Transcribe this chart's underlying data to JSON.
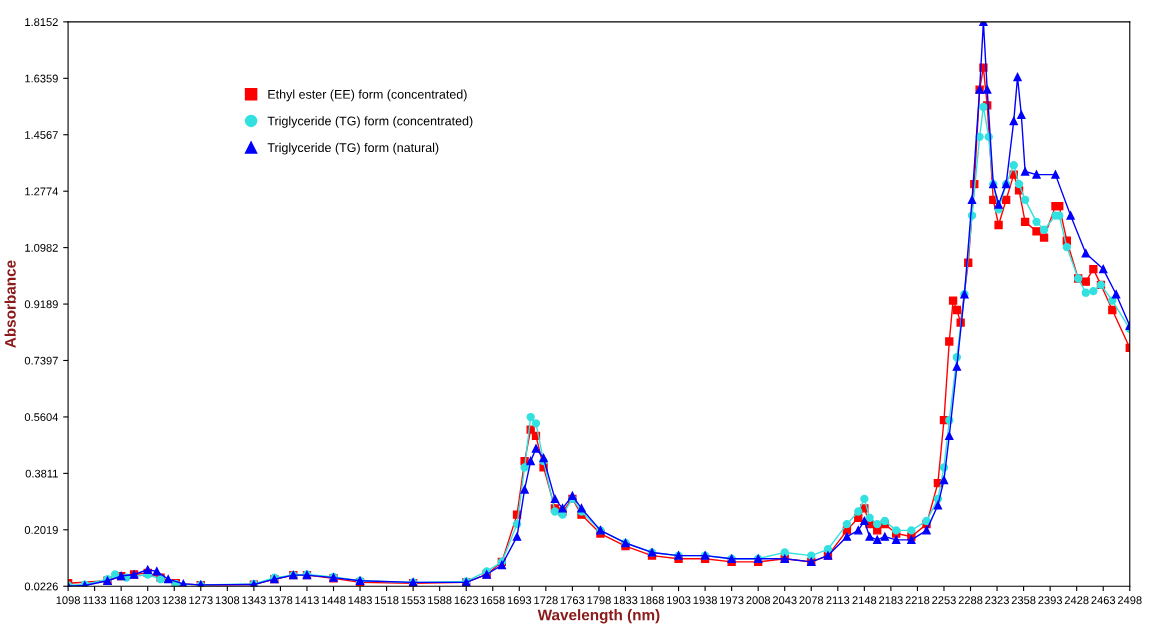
{
  "chart_data": {
    "type": "line",
    "xlabel": "Wavelength (nm)",
    "ylabel": "Absorbance",
    "xlim": [
      1098,
      2498
    ],
    "ylim": [
      0.0226,
      1.8152
    ],
    "xticks": [
      1098,
      1133,
      1168,
      1203,
      1238,
      1273,
      1308,
      1343,
      1378,
      1413,
      1448,
      1483,
      1518,
      1553,
      1588,
      1623,
      1658,
      1693,
      1728,
      1763,
      1798,
      1833,
      1868,
      1903,
      1938,
      1973,
      2008,
      2043,
      2078,
      2113,
      2148,
      2183,
      2218,
      2253,
      2288,
      2323,
      2358,
      2393,
      2428,
      2463,
      2498
    ],
    "yticks": [
      0.0226,
      0.2019,
      0.3811,
      0.5604,
      0.7397,
      0.9189,
      1.0982,
      1.2774,
      1.4567,
      1.6359,
      1.8152
    ],
    "grid": false,
    "legend": "top left",
    "line_style": "solid",
    "series": [
      {
        "name": "Ethyl ester (EE) form (concentrated)",
        "color": "#ff0000",
        "marker": "square",
        "x": [
          1098,
          1150,
          1168,
          1185,
          1203,
          1220,
          1240,
          1273,
          1343,
          1370,
          1395,
          1413,
          1448,
          1483,
          1553,
          1623,
          1650,
          1670,
          1690,
          1700,
          1708,
          1715,
          1725,
          1740,
          1750,
          1763,
          1775,
          1800,
          1833,
          1868,
          1903,
          1938,
          1973,
          2008,
          2043,
          2078,
          2100,
          2125,
          2140,
          2148,
          2155,
          2165,
          2175,
          2190,
          2210,
          2230,
          2245,
          2253,
          2260,
          2265,
          2270,
          2275,
          2285,
          2293,
          2300,
          2305,
          2310,
          2318,
          2325,
          2335,
          2345,
          2352,
          2360,
          2375,
          2385,
          2400,
          2405,
          2415,
          2430,
          2440,
          2450,
          2460,
          2475,
          2498
        ],
        "values": [
          0.032,
          0.04,
          0.055,
          0.06,
          0.065,
          0.05,
          0.032,
          0.026,
          0.028,
          0.045,
          0.058,
          0.058,
          0.048,
          0.035,
          0.032,
          0.035,
          0.06,
          0.1,
          0.25,
          0.42,
          0.52,
          0.5,
          0.4,
          0.27,
          0.26,
          0.3,
          0.25,
          0.19,
          0.15,
          0.12,
          0.11,
          0.11,
          0.1,
          0.1,
          0.11,
          0.1,
          0.12,
          0.2,
          0.24,
          0.27,
          0.22,
          0.2,
          0.22,
          0.19,
          0.18,
          0.22,
          0.35,
          0.55,
          0.8,
          0.93,
          0.9,
          0.86,
          1.05,
          1.3,
          1.6,
          1.67,
          1.55,
          1.25,
          1.17,
          1.25,
          1.33,
          1.28,
          1.18,
          1.15,
          1.13,
          1.23,
          1.23,
          1.12,
          1.0,
          0.99,
          1.03,
          0.98,
          0.9,
          0.78
        ]
      },
      {
        "name": "Triglyceride (TG) form (concentrated)",
        "color": "#33e0e0",
        "marker": "circle",
        "x": [
          1098,
          1120,
          1150,
          1160,
          1175,
          1203,
          1220,
          1240,
          1273,
          1343,
          1370,
          1395,
          1413,
          1448,
          1483,
          1553,
          1623,
          1650,
          1670,
          1690,
          1700,
          1708,
          1715,
          1725,
          1740,
          1750,
          1763,
          1775,
          1800,
          1833,
          1868,
          1903,
          1938,
          1973,
          2008,
          2043,
          2078,
          2100,
          2125,
          2140,
          2148,
          2155,
          2165,
          2175,
          2190,
          2210,
          2230,
          2245,
          2253,
          2260,
          2270,
          2280,
          2290,
          2300,
          2305,
          2312,
          2318,
          2325,
          2335,
          2345,
          2352,
          2360,
          2375,
          2385,
          2400,
          2405,
          2415,
          2430,
          2440,
          2450,
          2460,
          2475,
          2498
        ],
        "values": [
          0.025,
          0.028,
          0.045,
          0.06,
          0.05,
          0.06,
          0.045,
          0.03,
          0.027,
          0.03,
          0.05,
          0.058,
          0.06,
          0.052,
          0.04,
          0.035,
          0.038,
          0.07,
          0.1,
          0.22,
          0.4,
          0.56,
          0.54,
          0.42,
          0.26,
          0.25,
          0.3,
          0.26,
          0.2,
          0.16,
          0.13,
          0.12,
          0.12,
          0.11,
          0.11,
          0.13,
          0.12,
          0.14,
          0.22,
          0.26,
          0.3,
          0.24,
          0.22,
          0.23,
          0.2,
          0.2,
          0.23,
          0.3,
          0.4,
          0.55,
          0.75,
          0.95,
          1.2,
          1.45,
          1.545,
          1.45,
          1.3,
          1.22,
          1.3,
          1.36,
          1.3,
          1.25,
          1.18,
          1.155,
          1.2,
          1.2,
          1.1,
          1.0,
          0.955,
          0.96,
          0.98,
          0.93,
          0.84
        ]
      },
      {
        "name": "Triglyceride (TG) form (natural)",
        "color": "#0000ff",
        "marker": "triangle",
        "x": [
          1098,
          1120,
          1150,
          1168,
          1185,
          1203,
          1215,
          1230,
          1250,
          1273,
          1343,
          1370,
          1395,
          1413,
          1448,
          1483,
          1553,
          1623,
          1650,
          1670,
          1690,
          1700,
          1708,
          1715,
          1725,
          1740,
          1750,
          1763,
          1775,
          1800,
          1833,
          1868,
          1903,
          1938,
          1973,
          2008,
          2043,
          2078,
          2100,
          2125,
          2140,
          2148,
          2155,
          2165,
          2175,
          2190,
          2210,
          2230,
          2245,
          2253,
          2260,
          2270,
          2280,
          2290,
          2300,
          2305,
          2310,
          2318,
          2325,
          2335,
          2345,
          2350,
          2355,
          2360,
          2375,
          2400,
          2420,
          2440,
          2463,
          2480,
          2498
        ],
        "values": [
          0.0226,
          0.025,
          0.04,
          0.055,
          0.06,
          0.075,
          0.07,
          0.045,
          0.03,
          0.027,
          0.028,
          0.045,
          0.058,
          0.058,
          0.05,
          0.04,
          0.035,
          0.035,
          0.06,
          0.09,
          0.18,
          0.33,
          0.42,
          0.46,
          0.43,
          0.3,
          0.27,
          0.31,
          0.27,
          0.2,
          0.16,
          0.13,
          0.12,
          0.12,
          0.11,
          0.11,
          0.11,
          0.1,
          0.12,
          0.18,
          0.2,
          0.23,
          0.18,
          0.17,
          0.18,
          0.17,
          0.17,
          0.2,
          0.28,
          0.36,
          0.5,
          0.72,
          0.95,
          1.25,
          1.6,
          1.815,
          1.6,
          1.3,
          1.235,
          1.3,
          1.5,
          1.64,
          1.52,
          1.34,
          1.33,
          1.33,
          1.2,
          1.08,
          1.03,
          0.95,
          0.85
        ]
      }
    ]
  }
}
